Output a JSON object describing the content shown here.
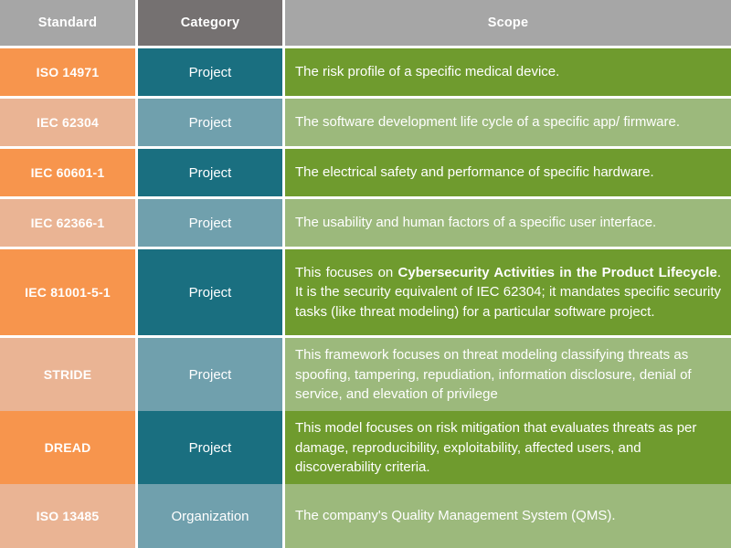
{
  "palette": {
    "header_light_gray": "#a6a6a6",
    "header_dark_gray": "#757171",
    "orange": "#f7954d",
    "peach": "#eab494",
    "dark_teal": "#1a6f80",
    "light_teal": "#70a0ad",
    "green": "#6f9b2e",
    "light_green": "#9cb97c",
    "text": "#ffffff",
    "grid_gap": "#ffffff"
  },
  "table": {
    "headers": {
      "standard": "Standard",
      "category": "Category",
      "scope": "Scope"
    },
    "rows": [
      {
        "standard": "ISO 14971",
        "category": "Project",
        "scope": "The risk profile of a specific medical device."
      },
      {
        "standard": "IEC 62304",
        "category": "Project",
        "scope": "The software development life cycle of a specific app/ firmware."
      },
      {
        "standard": "IEC 60601-1",
        "category": "Project",
        "scope": "The electrical safety and performance of specific hardware."
      },
      {
        "standard": "IEC 62366-1",
        "category": "Project",
        "scope": "The usability and human factors of a specific user interface."
      },
      {
        "standard": "IEC 81001-5-1",
        "category": "Project",
        "scope_segments": [
          {
            "text": "This focuses on ",
            "bold": false
          },
          {
            "text": "Cybersecurity Activities in the Product Lifecycle",
            "bold": true
          },
          {
            "text": ". It is the security equivalent of IEC 62304; it mandates specific security tasks (like threat modeling) for a particular software project.",
            "bold": false
          }
        ]
      },
      {
        "standard": "STRIDE",
        "category": "Project",
        "scope": "This framework focuses on threat modeling classifying threats as spoofing, tampering, repudiation, information disclosure, denial of service, and elevation of privilege"
      },
      {
        "standard": "DREAD",
        "category": "Project",
        "scope": "This model focuses on risk mitigation that evaluates threats as per damage, reproducibility, exploitability, affected users, and discoverability criteria."
      },
      {
        "standard": "ISO 13485",
        "category": "Organization",
        "scope": "The company's Quality Management System (QMS)."
      }
    ]
  }
}
